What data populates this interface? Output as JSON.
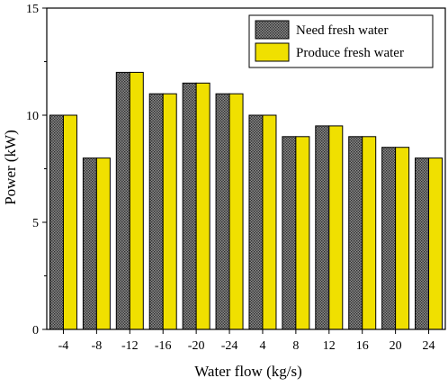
{
  "chart_data": {
    "type": "bar",
    "title": "",
    "xlabel": "Water flow (kg/s)",
    "ylabel": "Power (kW)",
    "ylim": [
      0,
      15
    ],
    "yticks": [
      "0",
      "5",
      "10",
      "15"
    ],
    "grid": false,
    "legend_position": "top-right",
    "categories": [
      "-4",
      "-8",
      "-12",
      "-16",
      "-20",
      "-24",
      "4",
      "8",
      "12",
      "16",
      "20",
      "24"
    ],
    "series": [
      {
        "name": "Need fresh water",
        "color": "#5a5a5a",
        "pattern": "crosshatch-gray",
        "values": [
          10,
          8,
          12,
          11,
          11.5,
          11,
          10,
          9,
          9.5,
          9,
          8.5,
          8
        ]
      },
      {
        "name": "Produce fresh water",
        "color": "#f0e000",
        "pattern": "solid",
        "values": [
          10,
          8,
          12,
          11,
          11.5,
          11,
          10,
          9,
          9.5,
          9,
          8.5,
          8
        ]
      }
    ]
  }
}
